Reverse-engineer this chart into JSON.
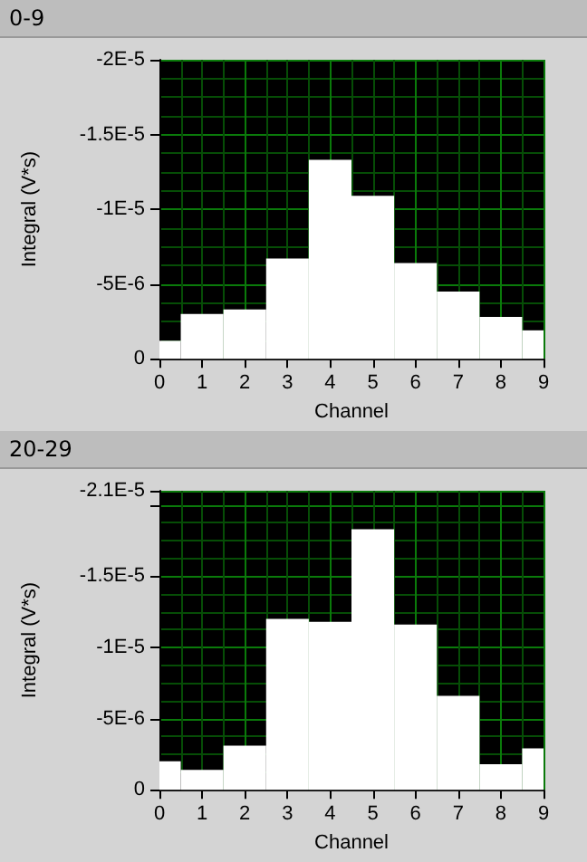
{
  "chart_data": [
    {
      "type": "histogram",
      "title": "0-9",
      "xlabel": "Channel",
      "ylabel": "Integral (V*s)",
      "color": "#ffffff",
      "bins": [
        0,
        0.5,
        1.5,
        2.5,
        3.5,
        4.5,
        5.5,
        6.5,
        7.5,
        8.5,
        9
      ],
      "values": [
        -1.2e-06,
        -3e-06,
        -3.3e-06,
        -6.7e-06,
        -1.33e-05,
        -1.09e-05,
        -6.4e-06,
        -4.5e-06,
        -2.8e-06,
        -1.9e-06
      ],
      "xlim": [
        0,
        9
      ],
      "xticks": [
        0,
        1,
        2,
        3,
        4,
        5,
        6,
        7,
        8,
        9
      ],
      "ylim": [
        0,
        -2e-05
      ],
      "yticks": [
        {
          "value": 0,
          "label": "0"
        },
        {
          "value": -5e-06,
          "label": "-5E-6"
        },
        {
          "value": -1e-05,
          "label": "-1E-5"
        },
        {
          "value": -1.5e-05,
          "label": "-1.5E-5"
        },
        {
          "value": -2e-05,
          "label": "-2E-5"
        }
      ],
      "grid": true
    },
    {
      "type": "histogram",
      "title": "20-29",
      "xlabel": "Channel",
      "ylabel": "Integral (V*s)",
      "color": "#ffffff",
      "bins": [
        0,
        0.5,
        1.5,
        2.5,
        3.5,
        4.5,
        5.5,
        6.5,
        7.5,
        8.5,
        9
      ],
      "values": [
        -2e-06,
        -1.4e-06,
        -3.1e-06,
        -1.2e-05,
        -1.18e-05,
        -1.83e-05,
        -1.16e-05,
        -6.6e-06,
        -1.8e-06,
        -2.9e-06
      ],
      "xlim": [
        0,
        9
      ],
      "xticks": [
        0,
        1,
        2,
        3,
        4,
        5,
        6,
        7,
        8,
        9
      ],
      "ylim": [
        0,
        -2.1e-05
      ],
      "yticks": [
        {
          "value": 0,
          "label": "0"
        },
        {
          "value": -5e-06,
          "label": "-5E-6"
        },
        {
          "value": -1e-05,
          "label": "-1E-5"
        },
        {
          "value": -1.5e-05,
          "label": "-1.5E-5"
        },
        {
          "value": -2e-05,
          "label": null
        },
        {
          "value": -2.1e-05,
          "label": "-2.1E-5"
        }
      ],
      "grid": true
    }
  ]
}
